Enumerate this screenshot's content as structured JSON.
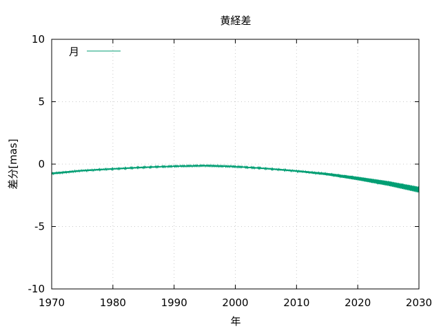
{
  "chart_data": {
    "type": "line",
    "title": "黄経差",
    "xlabel": "年",
    "ylabel": "差分[mas]",
    "xlim": [
      1970,
      2030
    ],
    "ylim": [
      -10,
      10
    ],
    "xticks": [
      "1970",
      "1980",
      "1990",
      "2000",
      "2010",
      "2020",
      "2030"
    ],
    "yticks": [
      "-10",
      "-5",
      "0",
      "5",
      "10"
    ],
    "grid": true,
    "legend_position": "top-left",
    "series": [
      {
        "name": "月",
        "color": "#009e73",
        "x": [
          1970,
          1975,
          1980,
          1985,
          1990,
          1995,
          2000,
          2005,
          2010,
          2015,
          2020,
          2025,
          2030
        ],
        "y": [
          -0.75,
          -0.52,
          -0.38,
          -0.26,
          -0.17,
          -0.12,
          -0.2,
          -0.35,
          -0.55,
          -0.8,
          -1.15,
          -1.55,
          -2.05
        ],
        "spread": [
          0.08,
          0.06,
          0.05,
          0.05,
          0.04,
          0.04,
          0.04,
          0.05,
          0.06,
          0.1,
          0.15,
          0.2,
          0.25
        ]
      }
    ]
  }
}
